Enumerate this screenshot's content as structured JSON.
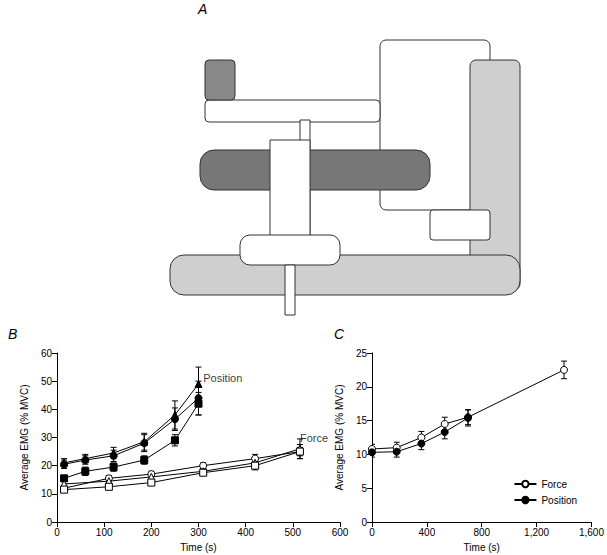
{
  "panel_labels": [
    "A",
    "B",
    "C"
  ],
  "chart_data": [
    {
      "type": "line",
      "panel": "B",
      "x_label": "Time (s)",
      "y_label": "Average EMG (% MVC)",
      "xlim": [
        0,
        600
      ],
      "xticks": [
        0,
        100,
        200,
        300,
        400,
        500,
        600
      ],
      "ylim": [
        0,
        60
      ],
      "yticks": [
        0,
        10,
        20,
        30,
        40,
        50,
        60
      ],
      "annotations": [
        {
          "text": "Position",
          "x": 310,
          "y": 51
        },
        {
          "text": "Force",
          "x": 515,
          "y": 30
        }
      ],
      "series": [
        {
          "marker": "filled_triangle",
          "color": "#000000",
          "x": [
            15,
            60,
            120,
            185,
            250,
            300
          ],
          "values": [
            21,
            22.5,
            24.5,
            28.5,
            38,
            49
          ],
          "errors": [
            1.5,
            1.5,
            2,
            3,
            5,
            6
          ]
        },
        {
          "marker": "filled_circle",
          "color": "#000000",
          "x": [
            15,
            60,
            120,
            185,
            250,
            300
          ],
          "values": [
            20.5,
            22,
            23.5,
            28,
            36.5,
            44
          ],
          "errors": [
            1.5,
            1.5,
            2,
            3,
            4,
            6
          ]
        },
        {
          "marker": "filled_square",
          "color": "#000000",
          "x": [
            15,
            60,
            120,
            185,
            250,
            300
          ],
          "values": [
            15.5,
            18,
            19.5,
            22,
            29,
            42
          ],
          "errors": [
            1,
            1.5,
            1.5,
            1.5,
            2,
            4
          ]
        },
        {
          "marker": "open_circle",
          "color": "#000000",
          "x": [
            15,
            110,
            200,
            310,
            420,
            515
          ],
          "values": [
            12,
            15.5,
            17,
            20,
            22.5,
            25
          ],
          "errors": [
            1,
            1,
            1,
            1,
            1.5,
            1.5
          ]
        },
        {
          "marker": "open_triangle",
          "color": "#000000",
          "x": [
            15,
            110,
            200,
            310,
            420,
            515
          ],
          "values": [
            13.5,
            14.5,
            16,
            18,
            21,
            26
          ],
          "errors": [
            1,
            1,
            1,
            1,
            1.5,
            3.5
          ]
        },
        {
          "marker": "open_square",
          "color": "#000000",
          "x": [
            15,
            110,
            200,
            310,
            420,
            515
          ],
          "values": [
            11.5,
            12.5,
            14,
            17.5,
            20,
            25
          ],
          "errors": [
            1,
            1,
            1,
            1,
            1.5,
            2.5
          ]
        }
      ]
    },
    {
      "type": "line",
      "panel": "C",
      "x_label": "Time (s)",
      "y_label": "Average EMG (% MVC)",
      "xlim": [
        0,
        1600
      ],
      "xticks": [
        0,
        400,
        800,
        1200,
        1600
      ],
      "ylim": [
        0,
        25
      ],
      "yticks": [
        0,
        5,
        10,
        15,
        20,
        25
      ],
      "legend": "lower right",
      "series": [
        {
          "name": "Force",
          "marker": "open_circle",
          "color": "#000000",
          "x": [
            0,
            180,
            360,
            530,
            700,
            1400
          ],
          "values": [
            10.8,
            11,
            12.5,
            14.5,
            15.5,
            22.5
          ],
          "errors": [
            0.7,
            0.8,
            0.9,
            1,
            1.1,
            1.3
          ]
        },
        {
          "name": "Position",
          "marker": "filled_circle",
          "color": "#000000",
          "x": [
            0,
            180,
            360,
            530,
            700
          ],
          "values": [
            10.3,
            10.4,
            11.6,
            13.3,
            15.4
          ],
          "errors": [
            0.7,
            0.8,
            0.9,
            1,
            1.2
          ]
        }
      ]
    }
  ]
}
